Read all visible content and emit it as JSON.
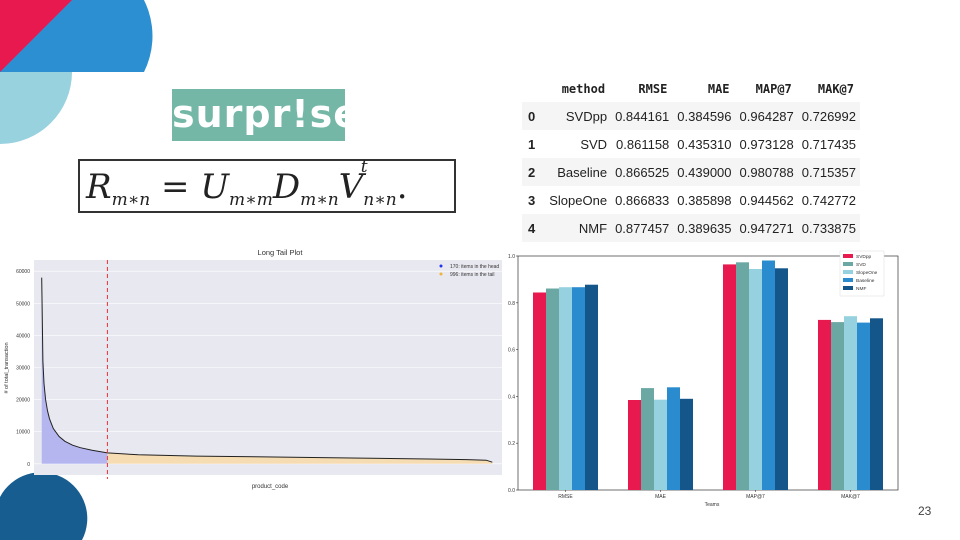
{
  "logo": {
    "text": "surpr!se"
  },
  "formula": {
    "lhs": "R",
    "lhs_sub": "m∗n",
    "eq": "=",
    "u": "U",
    "u_sub": "m∗m",
    "d": "D",
    "d_sub": "m∗n",
    "v": "V",
    "v_sup": "t",
    "v_sub": "n∗n",
    "end": "."
  },
  "table": {
    "columns": [
      "",
      "method",
      "RMSE",
      "MAE",
      "MAP@7",
      "MAK@7"
    ],
    "rows": [
      [
        "0",
        "SVDpp",
        "0.844161",
        "0.384596",
        "0.964287",
        "0.726992"
      ],
      [
        "1",
        "SVD",
        "0.861158",
        "0.435310",
        "0.973128",
        "0.717435"
      ],
      [
        "2",
        "Baseline",
        "0.866525",
        "0.439000",
        "0.980788",
        "0.715357"
      ],
      [
        "3",
        "SlopeOne",
        "0.866833",
        "0.385898",
        "0.944562",
        "0.742772"
      ],
      [
        "4",
        "NMF",
        "0.877457",
        "0.389635",
        "0.947271",
        "0.733875"
      ]
    ]
  },
  "page_number": "23",
  "colors": {
    "deco_red": "#e8194f",
    "deco_blue": "#2b8fd1",
    "deco_lightblue": "#98d2df",
    "deco_navy": "#175d8f",
    "logo_bg": "#74b7a6"
  },
  "chart_data": [
    {
      "type": "area",
      "title": "Long Tail Plot",
      "xlabel": "product_code",
      "ylabel": "# of total_transaction",
      "ylim": [
        0,
        60000
      ],
      "yticks": [
        "0",
        "10000",
        "20000",
        "30000",
        "40000",
        "50000",
        "60000"
      ],
      "legend": [
        "170: items in the head",
        "996: items in the tail"
      ],
      "legend_position": "top-right",
      "head_count": 170,
      "tail_count": 996,
      "curve_x": [
        0,
        3,
        6,
        10,
        15,
        20,
        30,
        45,
        60,
        80,
        100,
        130,
        170,
        250,
        400,
        600,
        800,
        1000,
        1100,
        1150,
        1166
      ],
      "curve_y": [
        58000,
        32000,
        25000,
        20000,
        16500,
        14000,
        11000,
        8500,
        7000,
        5800,
        5000,
        4200,
        3400,
        2800,
        2400,
        2100,
        1800,
        1500,
        1300,
        1100,
        500
      ],
      "colors": {
        "head": "#b5b5f0",
        "tail": "#f5dcb2",
        "line": "#222222",
        "cutoff": "#ee3333",
        "bg": "#e8e8f0"
      }
    },
    {
      "type": "bar",
      "xlabel": "Teams",
      "categories": [
        "RMSE",
        "MAE",
        "MAP@7",
        "MAK@7"
      ],
      "yticks": [
        "0.0",
        "0.2",
        "0.4",
        "0.6",
        "0.8",
        "1.0"
      ],
      "ylim": [
        0,
        1.0
      ],
      "legend_position": "top-right",
      "series": [
        {
          "name": "SVDpp",
          "color": "#e8194f",
          "values": [
            0.844161,
            0.384596,
            0.964287,
            0.726992
          ]
        },
        {
          "name": "SVD",
          "color": "#6ba8a4",
          "values": [
            0.861158,
            0.43531,
            0.973128,
            0.717435
          ]
        },
        {
          "name": "SlopeOne",
          "color": "#95d1de",
          "values": [
            0.866833,
            0.385898,
            0.944562,
            0.742772
          ]
        },
        {
          "name": "Baseline",
          "color": "#2a8ccf",
          "values": [
            0.866525,
            0.439,
            0.980788,
            0.715357
          ]
        },
        {
          "name": "NMF",
          "color": "#14568a",
          "values": [
            0.877457,
            0.389635,
            0.947271,
            0.733875
          ]
        }
      ]
    }
  ]
}
